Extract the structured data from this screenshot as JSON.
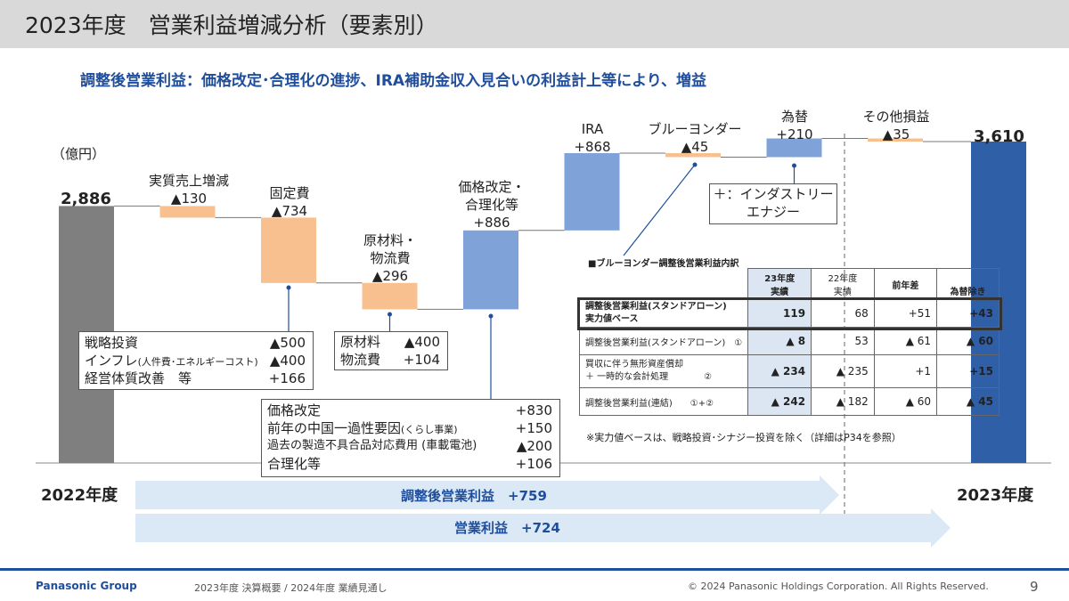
{
  "header": {
    "title": "2023年度　営業利益増減分析（要素別）"
  },
  "subtitle": "調整後営業利益：価格改定･合理化の進捗、IRA補助金収入見合いの利益計上等により、増益",
  "chart_data": {
    "type": "waterfall",
    "unit": "（億円）",
    "start": {
      "label": "2022年度",
      "value": 2886,
      "value_label": "2,886"
    },
    "end": {
      "label": "2023年度",
      "value": 3610,
      "value_label": "3,610"
    },
    "steps": [
      {
        "name": "実質売上増減",
        "value": -130,
        "value_label": "▲130"
      },
      {
        "name": "固定費",
        "value": -734,
        "value_label": "▲734"
      },
      {
        "name": "原材料・物流費",
        "name_line1": "原材料・",
        "name_line2": "物流費",
        "value": -296,
        "value_label": "▲296"
      },
      {
        "name": "価格改定・合理化等",
        "name_line1": "価格改定・",
        "name_line2": "合理化等",
        "value": 886,
        "value_label": "+886"
      },
      {
        "name": "IRA",
        "value": 868,
        "value_label": "+868"
      },
      {
        "name": "ブルーヨンダー",
        "value": -45,
        "value_label": "▲45"
      },
      {
        "name": "為替",
        "value": 210,
        "value_label": "+210"
      },
      {
        "name": "その他損益",
        "value": -35,
        "value_label": "▲35"
      }
    ],
    "colors": {
      "total": "#7f7f7f",
      "end_total": "#2f5fa7",
      "increase": "#7fa3d9",
      "decrease": "#f9c08f"
    }
  },
  "fixed_cost_box": {
    "items": [
      {
        "label": "戦略投資",
        "value": "▲500"
      },
      {
        "label": "インフレ",
        "label_small": "(人件費･エネルギーコスト)",
        "value": "▲400"
      },
      {
        "label": "経営体質改善　等",
        "value": "+166"
      }
    ]
  },
  "material_box": {
    "items": [
      {
        "label": "原材料",
        "value": "▲400"
      },
      {
        "label": "物流費",
        "value": "+104"
      }
    ]
  },
  "price_box": {
    "items": [
      {
        "label": "価格改定",
        "value": "+830"
      },
      {
        "label": "前年の中国一過性要因",
        "label_small": "(くらし事業)",
        "value": "+150"
      },
      {
        "label": "過去の製造不具合品対応費用 (車載電池)",
        "value": "▲200"
      },
      {
        "label": "合理化等",
        "value": "+106"
      }
    ]
  },
  "fx_box": {
    "line1": "＋：インダストリー",
    "line2": "エナジー"
  },
  "blue_yonder_table": {
    "title": "■ブルーヨンダー調整後営業利益内訳",
    "headers": {
      "fy23_l1": "23年度",
      "fy23_l2": "実績",
      "fy22_l1": "22年度",
      "fy22_l2": "実績",
      "diff": "前年差",
      "ex_fx": "為替除き"
    },
    "rows": [
      {
        "label_l1": "調整後営業利益(スタンドアローン)",
        "label_l2": "実力値ベース",
        "fy23": "119",
        "fy22": "68",
        "diff": "+51",
        "ex_fx": "+43"
      },
      {
        "label_l1": "調整後営業利益(スタンドアローン)　①",
        "label_l2": "",
        "fy23": "▲ 8",
        "fy22": "53",
        "diff": "▲ 61",
        "ex_fx": "▲ 60"
      },
      {
        "label_l1": "買収に伴う無形資産償却",
        "label_l2": "＋ 一時的な会計処理　　　　②",
        "fy23": "▲ 234",
        "fy22": "▲ 235",
        "diff": "+1",
        "ex_fx": "+15"
      },
      {
        "label_l1": "調整後営業利益(連結)　　①+②",
        "label_l2": "",
        "fy23": "▲ 242",
        "fy22": "▲ 182",
        "diff": "▲ 60",
        "ex_fx": "▲ 45"
      }
    ],
    "note": "※実力値ベースは、戦略投資･シナジー投資を除く（詳細はP34を参照）"
  },
  "arrows": [
    {
      "label": "調整後営業利益　+759"
    },
    {
      "label": "営業利益　+724"
    }
  ],
  "footer": {
    "brand": "Panasonic Group",
    "doc": "2023年度 決算概要 / 2024年度 業績見通し",
    "copyright": "© 2024 Panasonic Holdings Corporation. All Rights Reserved.",
    "page": "9"
  }
}
